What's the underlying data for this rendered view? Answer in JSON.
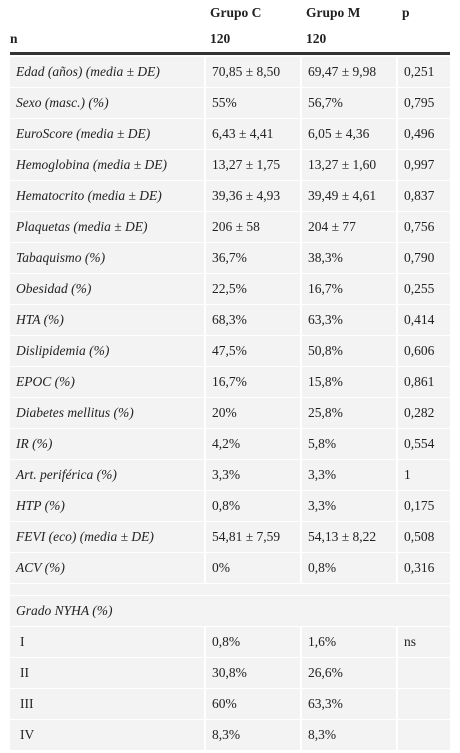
{
  "header": {
    "columns": [
      "Grupo C",
      "Grupo M",
      "p"
    ],
    "n_label": "n",
    "n_values": [
      "120",
      "120"
    ]
  },
  "rows": [
    [
      "Edad (años) (media ± DE)",
      "70,85 ± 8,50",
      "69,47 ± 9,98",
      "0,251"
    ],
    [
      "Sexo (masc.) (%)",
      "55%",
      "56,7%",
      "0,795"
    ],
    [
      "EuroScore (media ± DE)",
      "6,43 ± 4,41",
      "6,05 ± 4,36",
      "0,496"
    ],
    [
      "Hemoglobina (media ± DE)",
      "13,27 ± 1,75",
      "13,27 ± 1,60",
      "0,997"
    ],
    [
      "Hematocrito (media ± DE)",
      "39,36 ± 4,93",
      "39,49 ± 4,61",
      "0,837"
    ],
    [
      "Plaquetas (media ± DE)",
      "206 ± 58",
      "204 ± 77",
      "0,756"
    ],
    [
      "Tabaquismo (%)",
      "36,7%",
      "38,3%",
      "0,790"
    ],
    [
      "Obesidad (%)",
      "22,5%",
      "16,7%",
      "0,255"
    ],
    [
      "HTA (%)",
      "68,3%",
      "63,3%",
      "0,414"
    ],
    [
      "Dislipidemia (%)",
      "47,5%",
      "50,8%",
      "0,606"
    ],
    [
      "EPOC (%)",
      "16,7%",
      "15,8%",
      "0,861"
    ],
    [
      "Diabetes mellitus (%)",
      "20%",
      "25,8%",
      "0,282"
    ],
    [
      "IR (%)",
      "4,2%",
      "5,8%",
      "0,554"
    ],
    [
      "Art. periférica (%)",
      "3,3%",
      "3,3%",
      "1"
    ],
    [
      "HTP (%)",
      "0,8%",
      "3,3%",
      "0,175"
    ],
    [
      "FEVI (eco) (media ± DE)",
      "54,81 ± 7,59",
      "54,13 ± 8,22",
      "0,508"
    ],
    [
      "ACV (%)",
      "0%",
      "0,8%",
      "0,316"
    ]
  ],
  "section": {
    "title": "Grado NYHA (%)",
    "rows": [
      [
        "I",
        "0,8%",
        "1,6%",
        "ns"
      ],
      [
        "II",
        "30,8%",
        "26,6%"
      ],
      [
        "III",
        "60%",
        "63,3%"
      ],
      [
        "IV",
        "8,3%",
        "8,3%"
      ]
    ]
  }
}
